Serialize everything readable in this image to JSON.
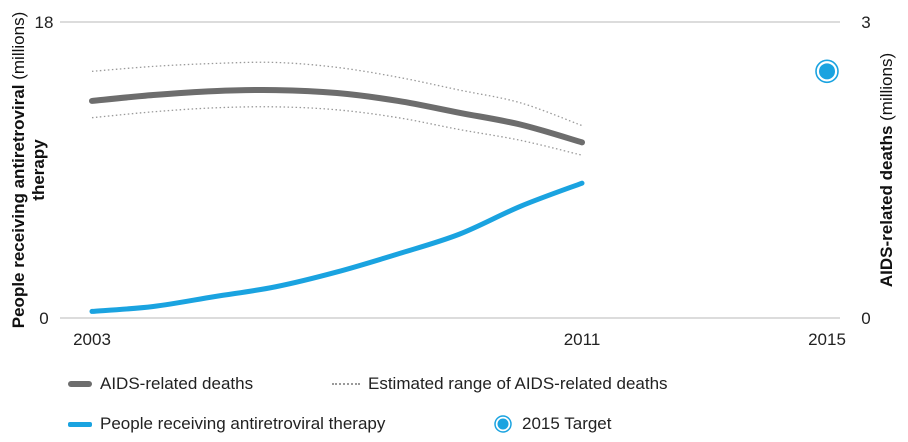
{
  "chart_data": {
    "type": "line",
    "x": [
      2003,
      2004,
      2005,
      2006,
      2007,
      2008,
      2009,
      2010,
      2011
    ],
    "x_ticks": [
      "2003",
      "2011",
      "2015"
    ],
    "xlim": [
      2003,
      2015
    ],
    "left_axis": {
      "label_bold": "People receiving antiretroviral therapy",
      "label_unit": "(millions)",
      "ylim": [
        0,
        18
      ],
      "ticks": [
        "0",
        "18"
      ]
    },
    "right_axis": {
      "label_bold": "AIDS-related deaths",
      "label_unit": "(millions)",
      "ylim": [
        0,
        3
      ],
      "ticks": [
        "0",
        "3"
      ]
    },
    "series": [
      {
        "name": "AIDS-related deaths",
        "axis": "right",
        "color": "#6d6d6d",
        "style": "thick",
        "values": [
          2.2,
          2.26,
          2.3,
          2.31,
          2.28,
          2.2,
          2.08,
          1.96,
          1.78
        ]
      },
      {
        "name": "Estimated range of AIDS-related deaths",
        "axis": "right",
        "color": "#9a9a9a",
        "style": "dotted",
        "upper": [
          2.5,
          2.55,
          2.58,
          2.59,
          2.54,
          2.44,
          2.31,
          2.18,
          1.95
        ],
        "lower": [
          2.03,
          2.09,
          2.13,
          2.14,
          2.11,
          2.03,
          1.91,
          1.8,
          1.65
        ]
      },
      {
        "name": "People receiving antiretroviral therapy",
        "axis": "left",
        "color": "#1aa3e0",
        "style": "solid",
        "values": [
          0.4,
          0.7,
          1.3,
          1.9,
          2.8,
          3.9,
          5.1,
          6.8,
          8.2
        ]
      }
    ],
    "target": {
      "name": "2015 Target",
      "x": 2015,
      "value": 15,
      "axis": "left",
      "color": "#1aa3e0"
    },
    "legend_position": "bottom"
  },
  "legend": {
    "deaths": "AIDS-related deaths",
    "range": "Estimated range of AIDS-related deaths",
    "art": "People receiving antiretroviral therapy",
    "target": "2015 Target"
  }
}
